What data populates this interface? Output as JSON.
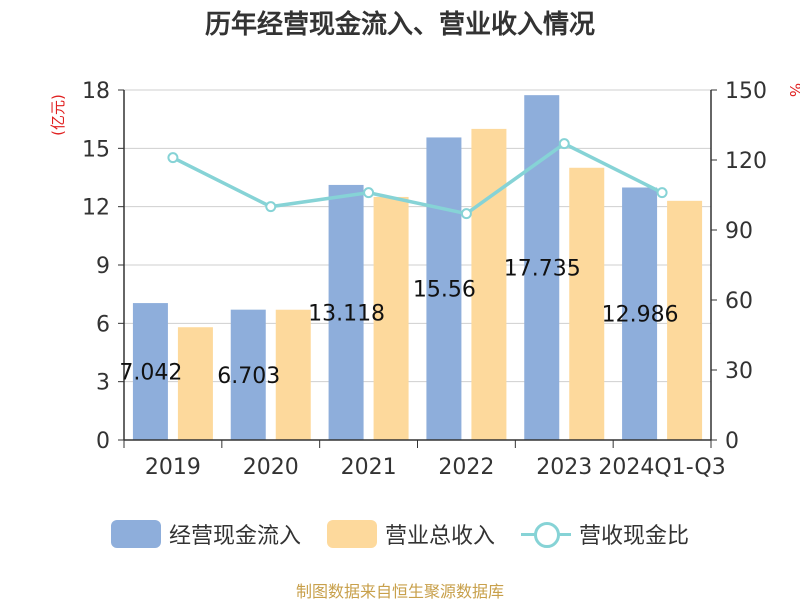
{
  "chart_data": {
    "type": "bar",
    "title": "历年经营现金流入、营业收入情况",
    "categories": [
      "2019",
      "2020",
      "2021",
      "2022",
      "2023",
      "2024Q1-Q3"
    ],
    "series": [
      {
        "name": "经营现金流入",
        "type": "bar",
        "axis": "left",
        "color": "#8eaedb",
        "values": [
          7.042,
          6.703,
          13.118,
          15.56,
          17.735,
          12.986
        ],
        "labels": [
          "7.042",
          "6.703",
          "13.118",
          "15.56",
          "17.735",
          "12.986"
        ]
      },
      {
        "name": "营业总收入",
        "type": "bar",
        "axis": "left",
        "color": "#fdd99c",
        "values": [
          5.8,
          6.7,
          12.5,
          16.0,
          14.0,
          12.3
        ]
      },
      {
        "name": "营收现金比",
        "type": "line",
        "axis": "right",
        "color": "#86d3d6",
        "values": [
          121,
          100,
          106,
          97,
          127,
          106
        ]
      }
    ],
    "ylabel": "(亿元)",
    "ylabel_right": "%",
    "ylim": [
      0,
      18
    ],
    "yticks": [
      "0",
      "3",
      "6",
      "9",
      "12",
      "15",
      "18"
    ],
    "ylim_right": [
      0,
      150
    ],
    "yticks_right": [
      "0",
      "30",
      "60",
      "90",
      "120",
      "150"
    ],
    "grid": true,
    "legend_position": "bottom"
  },
  "source": "制图数据来自恒生聚源数据库"
}
